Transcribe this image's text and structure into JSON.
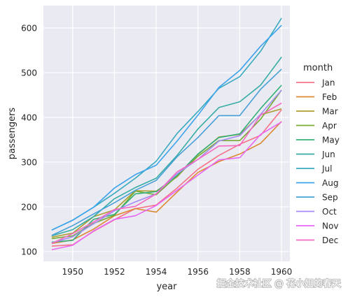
{
  "chart_data": {
    "type": "line",
    "title": "",
    "xlabel": "year",
    "ylabel": "passengers",
    "xlim": [
      1948.6,
      1960.4
    ],
    "ylim": [
      78,
      650
    ],
    "x_ticks": [
      1950,
      1952,
      1954,
      1956,
      1958,
      1960
    ],
    "y_ticks": [
      100,
      200,
      300,
      400,
      500,
      600
    ],
    "grid": true,
    "legend_title": "month",
    "legend_placement": "right",
    "x": [
      1949,
      1950,
      1951,
      1952,
      1953,
      1954,
      1955,
      1956,
      1957,
      1958,
      1959,
      1960
    ],
    "series": [
      {
        "name": "Jan",
        "color": "#f77189",
        "values": [
          112,
          115,
          145,
          171,
          196,
          204,
          242,
          284,
          315,
          340,
          360,
          417
        ]
      },
      {
        "name": "Feb",
        "color": "#dc8932",
        "values": [
          118,
          126,
          150,
          180,
          196,
          188,
          233,
          277,
          301,
          318,
          342,
          391
        ]
      },
      {
        "name": "Mar",
        "color": "#ae9d31",
        "values": [
          132,
          141,
          178,
          193,
          236,
          235,
          267,
          317,
          356,
          362,
          406,
          419
        ]
      },
      {
        "name": "Apr",
        "color": "#77ab31",
        "values": [
          129,
          135,
          163,
          181,
          235,
          227,
          269,
          313,
          348,
          348,
          396,
          461
        ]
      },
      {
        "name": "May",
        "color": "#33b07a",
        "values": [
          121,
          125,
          172,
          183,
          229,
          234,
          270,
          318,
          355,
          363,
          420,
          472
        ]
      },
      {
        "name": "Jun",
        "color": "#36ada4",
        "values": [
          135,
          149,
          178,
          218,
          243,
          264,
          315,
          374,
          422,
          435,
          472,
          535
        ]
      },
      {
        "name": "Jul",
        "color": "#38aabf",
        "values": [
          148,
          170,
          199,
          230,
          264,
          302,
          364,
          413,
          465,
          491,
          548,
          622
        ]
      },
      {
        "name": "Aug",
        "color": "#3ba3ec",
        "values": [
          148,
          170,
          199,
          242,
          272,
          293,
          347,
          405,
          467,
          505,
          559,
          606
        ]
      },
      {
        "name": "Sep",
        "color": "#48a0d9",
        "values": [
          136,
          158,
          184,
          209,
          237,
          259,
          312,
          355,
          404,
          404,
          463,
          508
        ]
      },
      {
        "name": "Oct",
        "color": "#a48cf4",
        "values": [
          119,
          133,
          162,
          191,
          211,
          229,
          274,
          306,
          347,
          359,
          407,
          461
        ]
      },
      {
        "name": "Nov",
        "color": "#e866f4",
        "values": [
          104,
          114,
          146,
          172,
          180,
          203,
          237,
          271,
          305,
          310,
          362,
          390
        ]
      },
      {
        "name": "Dec",
        "color": "#f668c2",
        "values": [
          118,
          140,
          166,
          194,
          201,
          229,
          278,
          306,
          336,
          337,
          405,
          432
        ]
      }
    ]
  },
  "watermark": "掘金技术社区 @ 花小姐的春天"
}
